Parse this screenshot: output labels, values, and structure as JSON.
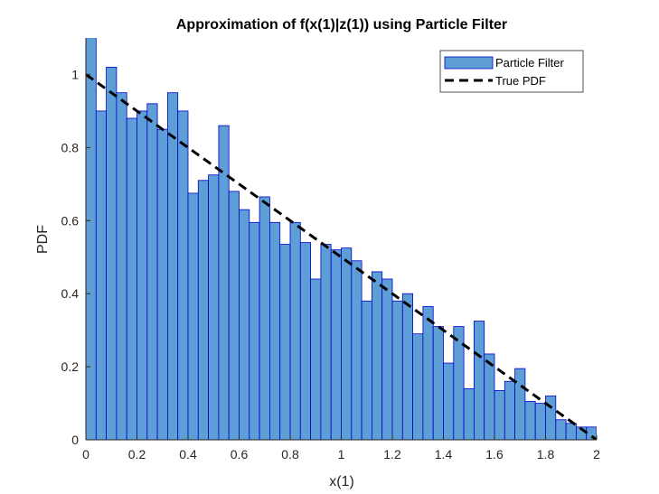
{
  "chart_data": {
    "type": "bar",
    "title": "Approximation of f(x(1)|z(1)) using Particle Filter",
    "xlabel": "x(1)",
    "ylabel": "PDF",
    "xlim": [
      0,
      2
    ],
    "ylim": [
      0,
      1.1
    ],
    "xticks": [
      0,
      0.2,
      0.4,
      0.6,
      0.8,
      1,
      1.2,
      1.4,
      1.6,
      1.8,
      2
    ],
    "xtick_labels": [
      "0",
      "0.2",
      "0.4",
      "0.6",
      "0.8",
      "1",
      "1.2",
      "1.4",
      "1.6",
      "1.8",
      "2"
    ],
    "yticks": [
      0,
      0.2,
      0.4,
      0.6,
      0.8,
      1
    ],
    "ytick_labels": [
      "0",
      "0.2",
      "0.4",
      "0.6",
      "0.8",
      "1"
    ],
    "grid": false,
    "legend_placement": "top-right",
    "series": [
      {
        "name": "Particle Filter",
        "kind": "histogram",
        "bin_start": 0,
        "bin_width": 0.04,
        "values": [
          1.11,
          0.9,
          1.02,
          0.95,
          0.88,
          0.9,
          0.92,
          0.85,
          0.95,
          0.9,
          0.675,
          0.71,
          0.725,
          0.86,
          0.68,
          0.63,
          0.595,
          0.665,
          0.595,
          0.535,
          0.595,
          0.54,
          0.44,
          0.535,
          0.52,
          0.525,
          0.49,
          0.38,
          0.46,
          0.44,
          0.38,
          0.4,
          0.29,
          0.365,
          0.31,
          0.21,
          0.31,
          0.14,
          0.325,
          0.235,
          0.135,
          0.16,
          0.195,
          0.105,
          0.1,
          0.12,
          0.055,
          0.045,
          0.035,
          0.035
        ],
        "fill_color": "#5e9ed6",
        "edge_color": "#0000cc"
      },
      {
        "name": "True PDF",
        "kind": "line",
        "style": "dashed",
        "color": "#000000",
        "x": [
          0,
          2
        ],
        "y": [
          1,
          0
        ]
      }
    ]
  }
}
